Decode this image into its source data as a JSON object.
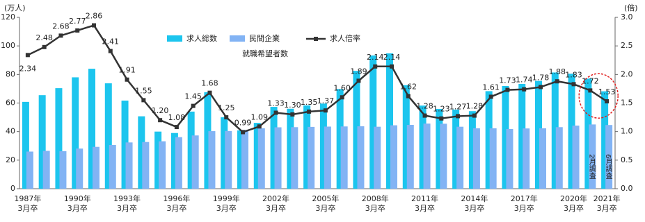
{
  "chart_data": {
    "type": "bar_line",
    "y_label": "(万人)",
    "y2_label": "(倍)",
    "categories": [
      [
        "1987年",
        "3月卒"
      ],
      null,
      null,
      [
        "1990年",
        "3月卒"
      ],
      null,
      null,
      [
        "1993年",
        "3月卒"
      ],
      null,
      null,
      [
        "1996年",
        "3月卒"
      ],
      null,
      null,
      [
        "1999年",
        "3月卒"
      ],
      null,
      null,
      [
        "2002年",
        "3月卒"
      ],
      null,
      null,
      [
        "2005年",
        "3月卒"
      ],
      null,
      null,
      [
        "2008年",
        "3月卒"
      ],
      null,
      null,
      [
        "2011年",
        "3月卒"
      ],
      null,
      null,
      [
        "2014年",
        "3月卒"
      ],
      null,
      null,
      [
        "2017年",
        "3月卒"
      ],
      null,
      null,
      [
        "2020年",
        "3月卒"
      ],
      null,
      [
        "2021年",
        "3月卒"
      ]
    ],
    "series": [
      {
        "name": "求人総数",
        "color": "#1cc5ee",
        "values": [
          60.8,
          65.5,
          70.4,
          78,
          84,
          73.8,
          61.7,
          50.7,
          40,
          39,
          54,
          67.6,
          50,
          40.8,
          46.1,
          57.3,
          56,
          58.3,
          59.6,
          69.8,
          82.5,
          93.3,
          94.8,
          72.5,
          58.2,
          55.9,
          55.4,
          54.3,
          68.3,
          71.9,
          73.4,
          75.5,
          81.4,
          80.5,
          77.1,
          68.2
        ]
      },
      {
        "name": "民間企業",
        "legend_note": "就職希望者数",
        "color": "#82b3f4",
        "values": [
          26,
          26.5,
          26.3,
          28.1,
          29.3,
          30.6,
          32.4,
          32.7,
          33.2,
          36.1,
          37.3,
          40.3,
          40.4,
          41.2,
          42.3,
          43,
          43.1,
          43.3,
          43.5,
          43.6,
          43.7,
          43.4,
          44.4,
          44.7,
          45.6,
          45.5,
          43.4,
          42.3,
          42.3,
          41.8,
          42.2,
          42.3,
          43.1,
          44.2,
          45,
          44.6
        ]
      },
      {
        "name": "求人倍率",
        "color": "#333333",
        "axis": "y2",
        "values": [
          2.34,
          2.48,
          2.68,
          2.77,
          2.86,
          2.41,
          1.91,
          1.55,
          1.2,
          1.08,
          1.45,
          1.68,
          1.25,
          0.99,
          1.09,
          1.33,
          1.3,
          1.35,
          1.37,
          1.6,
          1.89,
          2.14,
          2.14,
          1.62,
          1.28,
          1.23,
          1.27,
          1.28,
          1.61,
          1.73,
          1.74,
          1.78,
          1.88,
          1.83,
          1.72,
          1.53
        ],
        "value_labels": [
          "2.34",
          "2.48",
          "2.68",
          "2.77",
          "2.86",
          "2.41",
          "1.91",
          "1.55",
          "1.20",
          "1.08",
          "1.45",
          "1.68",
          "1.25",
          "0.99",
          "1.09",
          "1.33",
          "1.30",
          "1.35",
          "1.37",
          "1.60",
          "1.89",
          "2.14",
          "2.14",
          "1.62",
          "1.28",
          "1.23",
          "1.27",
          "1.28",
          "1.61",
          "1.73",
          "1.74",
          "1.78",
          "1.88",
          "1.83",
          "1.72",
          "1.53"
        ]
      }
    ],
    "annotations": [
      "2月調査",
      "6月調査"
    ],
    "ylim": [
      0,
      120
    ],
    "yticks": [
      0,
      20,
      40,
      60,
      80,
      100,
      120
    ],
    "y2lim": [
      0,
      3
    ],
    "y2ticks": [
      {
        "value": 0,
        "label": "0.0"
      },
      {
        "value": 0.5,
        "label": "0.5"
      },
      {
        "value": 1,
        "label": "1.0"
      },
      {
        "value": 1.5,
        "label": "1.5"
      },
      {
        "value": 2,
        "label": "2.0"
      },
      {
        "value": 2.5,
        "label": "2.5"
      },
      {
        "value": 3,
        "label": "3.0"
      }
    ]
  }
}
